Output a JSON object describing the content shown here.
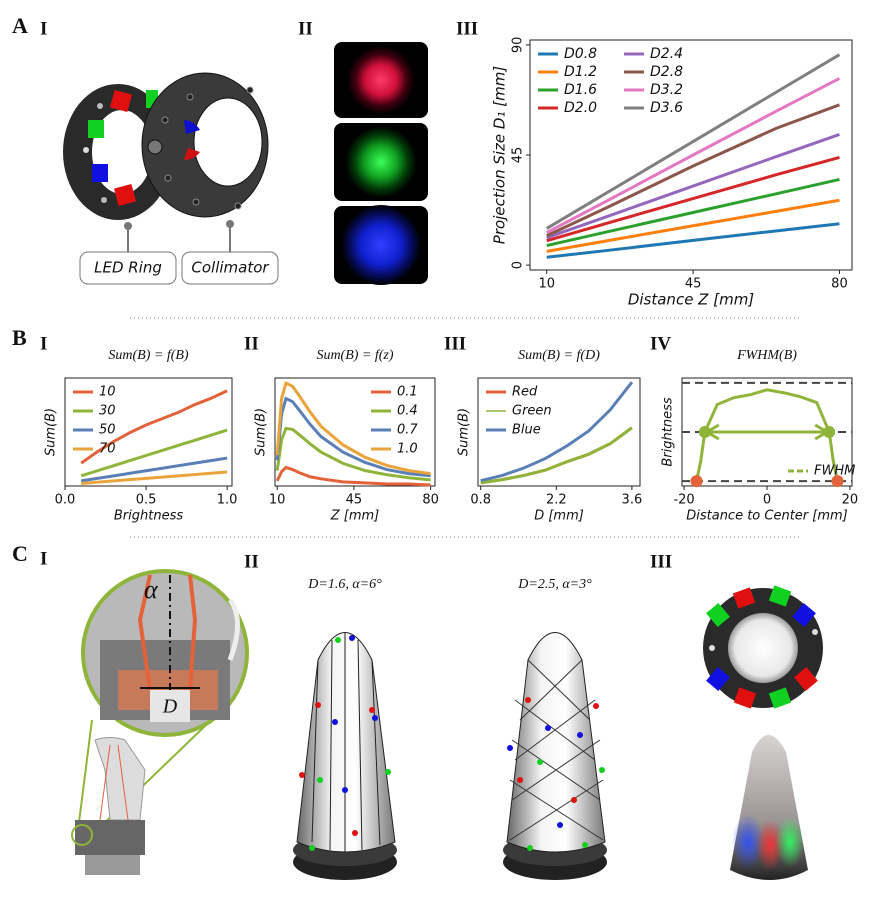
{
  "panel_labels": [
    "A",
    "I",
    "II",
    "III",
    "B",
    "I",
    "II",
    "III",
    "IV",
    "C",
    "I",
    "II",
    "III"
  ],
  "callouts": [
    "LED Ring",
    "Collimator"
  ],
  "configs": [
    "D=1.6, α=6°",
    "D=2.5, α=3°"
  ],
  "symbols": {
    "alpha": "α",
    "D": "D"
  },
  "chart_data": [
    {
      "type": "line",
      "xlabel": "Distance Z [mm]",
      "ylabel": "Projection Size D₁ [mm]",
      "x": [
        10,
        25,
        45,
        65,
        80
      ],
      "xlim": [
        6,
        83
      ],
      "xticks": [
        10,
        45,
        80
      ],
      "ylim": [
        -2,
        92
      ],
      "yticks": [
        0,
        45,
        90
      ],
      "legend": "upper left",
      "series": [
        {
          "name": "D0.8",
          "color": "#1f77b4",
          "values": [
            3.2,
            6.1,
            10.1,
            14.0,
            16.9
          ]
        },
        {
          "name": "D1.2",
          "color": "#ff7f0e",
          "values": [
            5.6,
            10.1,
            16.1,
            22.0,
            26.5
          ]
        },
        {
          "name": "D1.6",
          "color": "#2ca02c",
          "values": [
            8.0,
            13.8,
            21.5,
            29.2,
            35.0
          ]
        },
        {
          "name": "D2.0",
          "color": "#d62728",
          "values": [
            10.0,
            17.4,
            27.2,
            37.0,
            44.0
          ]
        },
        {
          "name": "D2.4",
          "color": "#9467bd",
          "values": [
            11.2,
            20.2,
            32.3,
            44.4,
            53.4
          ]
        },
        {
          "name": "D2.8",
          "color": "#8c564b",
          "values": [
            12.0,
            24.0,
            40.5,
            56.0,
            65.5
          ]
        },
        {
          "name": "D3.2",
          "color": "#e377c2",
          "values": [
            13.3,
            26.8,
            45.0,
            63.0,
            76.3
          ]
        },
        {
          "name": "D3.6",
          "color": "#7f7f7f",
          "values": [
            15.0,
            30.2,
            50.5,
            70.8,
            86.0
          ]
        }
      ]
    },
    {
      "type": "line",
      "title": "Sum(B) = f(B)",
      "xlabel": "Brightness",
      "ylabel": "Sum(B)",
      "x": [
        0.1,
        0.2,
        0.3,
        0.4,
        0.5,
        0.6,
        0.7,
        0.8,
        0.9,
        1.0
      ],
      "xlim": [
        0,
        1.03
      ],
      "xticks": [
        {
          "value": 0,
          "label": "0.0"
        },
        0.5,
        {
          "value": 1,
          "label": "1.0"
        }
      ],
      "ylim": [
        0,
        0.85
      ],
      "legend": "upper left",
      "series": [
        {
          "name": "10",
          "color": "#e4623a",
          "values": [
            0.18,
            0.27,
            0.35,
            0.42,
            0.48,
            0.53,
            0.58,
            0.64,
            0.69,
            0.75
          ]
        },
        {
          "name": "30",
          "color": "#8fb43a",
          "values": [
            0.08,
            0.12,
            0.16,
            0.2,
            0.24,
            0.28,
            0.32,
            0.36,
            0.4,
            0.44
          ]
        },
        {
          "name": "50",
          "color": "#5a7fb6",
          "values": [
            0.04,
            0.06,
            0.08,
            0.1,
            0.12,
            0.14,
            0.16,
            0.18,
            0.2,
            0.22
          ]
        },
        {
          "name": "70",
          "color": "#e9a33b",
          "values": [
            0.02,
            0.03,
            0.04,
            0.05,
            0.06,
            0.07,
            0.08,
            0.09,
            0.1,
            0.11
          ]
        }
      ]
    },
    {
      "type": "line",
      "title": "Sum(B) = f(z)",
      "xlabel": "Z [mm]",
      "ylabel": "Sum(B)",
      "x": [
        10,
        12,
        14,
        17,
        20,
        25,
        30,
        40,
        50,
        60,
        70,
        80
      ],
      "xlim": [
        9,
        82
      ],
      "xticks": [
        10,
        45,
        80
      ],
      "ylim": [
        0,
        1.05
      ],
      "legend": "upper right",
      "series": [
        {
          "name": "0.1",
          "color": "#e4623a",
          "values": [
            0.05,
            0.14,
            0.18,
            0.16,
            0.13,
            0.09,
            0.07,
            0.04,
            0.03,
            0.02,
            0.02,
            0.01
          ]
        },
        {
          "name": "0.4",
          "color": "#8fb43a",
          "values": [
            0.15,
            0.45,
            0.56,
            0.55,
            0.5,
            0.41,
            0.33,
            0.22,
            0.15,
            0.11,
            0.08,
            0.06
          ]
        },
        {
          "name": "0.7",
          "color": "#5a7fb6",
          "values": [
            0.25,
            0.7,
            0.85,
            0.82,
            0.74,
            0.6,
            0.48,
            0.33,
            0.23,
            0.16,
            0.12,
            0.1
          ]
        },
        {
          "name": "1.0",
          "color": "#e9a33b",
          "values": [
            0.3,
            0.85,
            1.0,
            0.97,
            0.88,
            0.72,
            0.58,
            0.4,
            0.28,
            0.2,
            0.15,
            0.12
          ]
        }
      ]
    },
    {
      "type": "line",
      "title": "Sum(B) = f(D)",
      "xlabel": "D [mm]",
      "ylabel": "Sum(B)",
      "x": [
        0.8,
        1.2,
        1.6,
        2.0,
        2.4,
        2.8,
        3.2,
        3.6
      ],
      "xlim": [
        0.75,
        3.75
      ],
      "xticks": [
        0.8,
        2.2,
        3.6
      ],
      "ylim": [
        0,
        1.02
      ],
      "legend": "upper left",
      "series": [
        {
          "name": "Red",
          "color": "#e4623a",
          "values": [
            0.03,
            0.06,
            0.1,
            0.15,
            0.23,
            0.3,
            0.4,
            0.55
          ]
        },
        {
          "name": "Green",
          "color": "#8fb43a",
          "values": [
            0.03,
            0.06,
            0.1,
            0.15,
            0.23,
            0.3,
            0.4,
            0.55
          ]
        },
        {
          "name": "Blue",
          "color": "#5a7fb6",
          "values": [
            0.05,
            0.1,
            0.17,
            0.26,
            0.38,
            0.52,
            0.72,
            0.98
          ]
        }
      ]
    },
    {
      "type": "line",
      "title": "FWHM(B)",
      "xlabel": "Distance to Center [mm]",
      "ylabel": "Brightness",
      "xlim": [
        -20.5,
        20.5
      ],
      "xticks": [
        -20,
        0,
        20
      ],
      "ylim": [
        -0.05,
        1.05
      ],
      "hlines": [
        0,
        0.5,
        1
      ],
      "legend": "lower right",
      "profile": {
        "color": "#8fb43a",
        "end_color": "#e4623a",
        "x": [
          -17,
          -16,
          -15,
          -12,
          -8,
          -4,
          0,
          4,
          8,
          12,
          15,
          16,
          17
        ],
        "values": [
          0,
          0.2,
          0.5,
          0.78,
          0.85,
          0.88,
          0.93,
          0.9,
          0.86,
          0.8,
          0.5,
          0.2,
          0
        ]
      },
      "series": [
        {
          "name": "FWHM",
          "color": "#8fb43a",
          "x": [
            -15,
            15
          ],
          "values": [
            0.5,
            0.5
          ]
        }
      ]
    }
  ]
}
